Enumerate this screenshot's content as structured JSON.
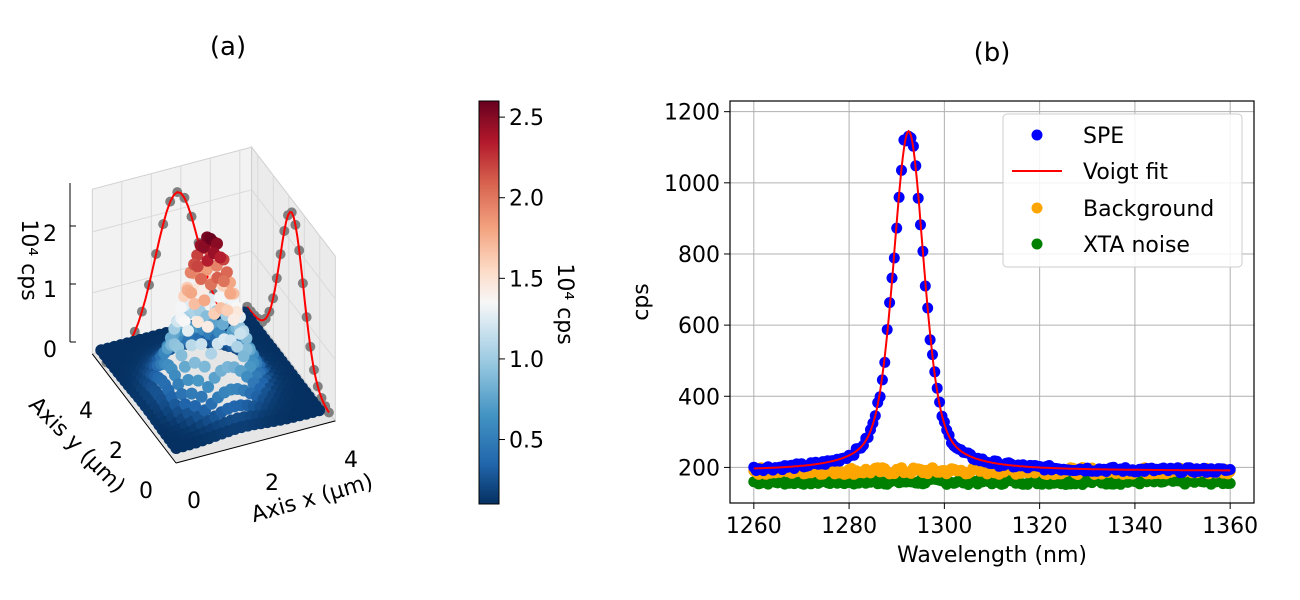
{
  "panel_a": {
    "label": "(a)",
    "chart_data": {
      "type": "surface3d",
      "title": "(a)",
      "xlabel": "Axis x (µm)",
      "ylabel": "Axis y (µm)",
      "zlabel": "10⁴ cps",
      "x_ticks": [
        "0",
        "2",
        "4"
      ],
      "y_ticks": [
        "0",
        "2",
        "4"
      ],
      "z_ticks": [
        "0",
        "1",
        "2"
      ],
      "xlim": [
        0,
        5.4
      ],
      "ylim": [
        0,
        5.4
      ],
      "zlim": [
        0,
        2.7
      ],
      "peak": {
        "x": 2.4,
        "y": 2.4,
        "z": 2.6,
        "base": 0.1,
        "sigma": 0.75
      },
      "colorbar": {
        "label": "10⁴ cps",
        "colormap": "RdBu_r",
        "range": [
          0.1,
          2.6
        ],
        "ticks": [
          "0.5",
          "1.0",
          "1.5",
          "2.0",
          "2.5"
        ],
        "tick_values": [
          0.5,
          1.0,
          1.5,
          2.0,
          2.5
        ]
      },
      "projection_color": "#808080",
      "fit_color": "#ff0000"
    }
  },
  "panel_b": {
    "label": "(b)",
    "chart_data": {
      "type": "scatter",
      "title": "(b)",
      "xlabel": "Wavelength (nm)",
      "ylabel": "cps",
      "xlim": [
        1255,
        1365
      ],
      "ylim": [
        100,
        1230
      ],
      "x_ticks": [
        1260,
        1280,
        1300,
        1320,
        1340,
        1360
      ],
      "y_ticks": [
        200,
        400,
        600,
        800,
        1000,
        1200
      ],
      "grid": true,
      "legend_position": "top-right",
      "series": [
        {
          "name": "SPE",
          "kind": "points",
          "color": "#0000ff",
          "model": {
            "baseline": 190,
            "peak_center": 1292.5,
            "peak_amplitude": 960,
            "peak_width": 4.2,
            "x_range": [
              1260,
              1360
            ],
            "step": 0.5
          }
        },
        {
          "name": "Voigt fit",
          "kind": "line",
          "color": "#ff0000",
          "model": {
            "baseline": 190,
            "peak_center": 1292.5,
            "peak_amplitude": 955,
            "peak_width": 4.2,
            "x_range": [
              1260,
              1360
            ]
          }
        },
        {
          "name": "Background",
          "kind": "points",
          "color": "#ffa500",
          "model": {
            "level": 190,
            "noise": 10,
            "x_range": [
              1260,
              1360
            ],
            "step": 0.5
          }
        },
        {
          "name": "XTA noise",
          "kind": "points",
          "color": "#008000",
          "model": {
            "level": 160,
            "noise": 8,
            "x_range": [
              1260,
              1360
            ],
            "step": 0.5
          }
        }
      ]
    }
  }
}
